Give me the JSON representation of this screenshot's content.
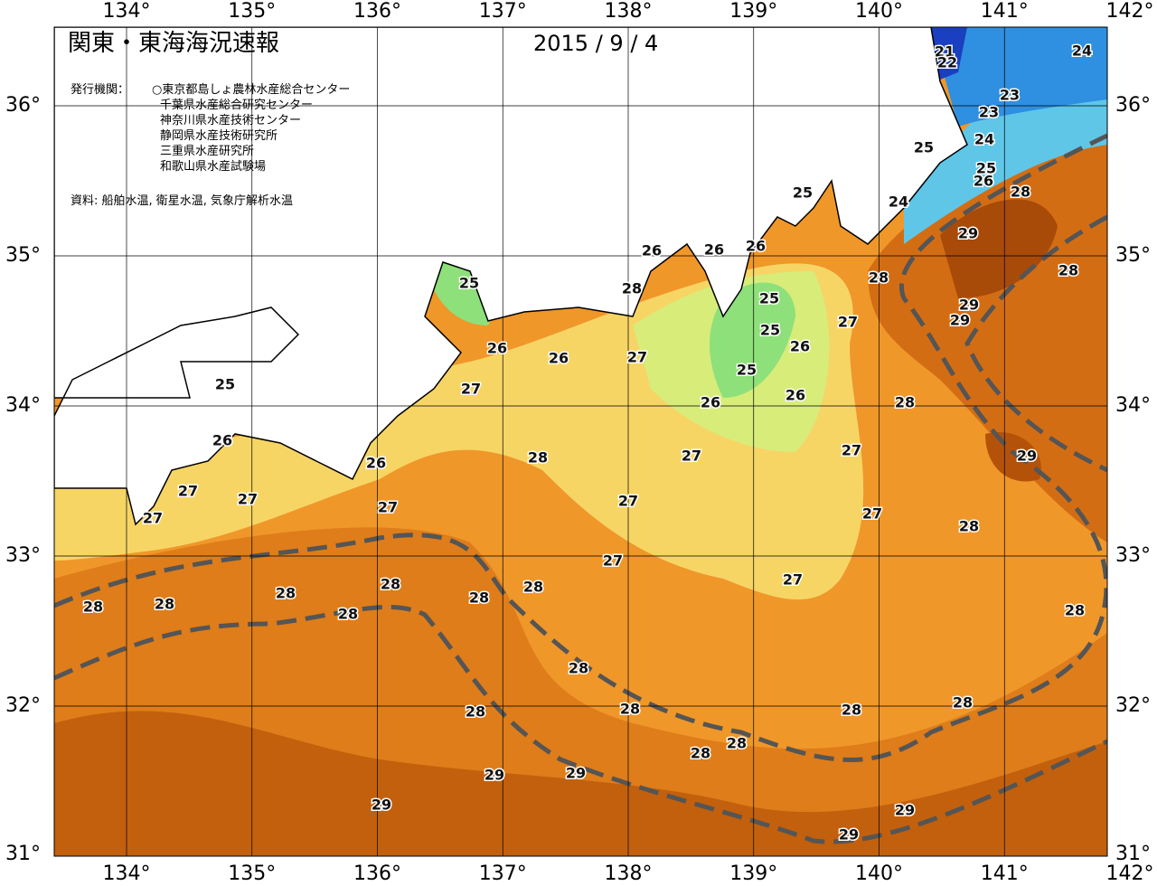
{
  "map": {
    "title": "関東・東海海況速報",
    "date": "2015 / 9 / 4",
    "agencies_label": "発行機関：",
    "agencies": [
      "○東京都島しょ農林水産総合センター",
      "千葉県水産総合研究センター",
      "神奈川県水産技術センター",
      "静岡県水産技術研究所",
      "三重県水産研究所",
      "和歌山県水産試験場"
    ],
    "source": "資料: 船舶水温, 衛星水温, 気象庁解析水温",
    "lon_labels": [
      "134°",
      "135°",
      "136°",
      "137°",
      "138°",
      "139°",
      "140°",
      "141°",
      "142°"
    ],
    "lat_labels": [
      "36°",
      "35°",
      "34°",
      "33°",
      "32°",
      "31°"
    ],
    "contour_labels": [
      "21",
      "22",
      "24",
      "23",
      "23",
      "24",
      "25",
      "25",
      "26",
      "25",
      "24",
      "28",
      "29",
      "26",
      "26",
      "26",
      "28",
      "28",
      "28",
      "25",
      "25",
      "29",
      "29",
      "27",
      "25",
      "26",
      "26",
      "26",
      "27",
      "25",
      "25",
      "27",
      "26",
      "26",
      "28",
      "26",
      "27",
      "29",
      "28",
      "27",
      "26",
      "27",
      "27",
      "27",
      "27",
      "27",
      "27",
      "28",
      "27",
      "27",
      "28",
      "28",
      "28",
      "28",
      "28",
      "28",
      "28",
      "28",
      "28",
      "28",
      "28",
      "28",
      "28",
      "28",
      "28",
      "29",
      "29",
      "29",
      "29",
      "29"
    ]
  }
}
